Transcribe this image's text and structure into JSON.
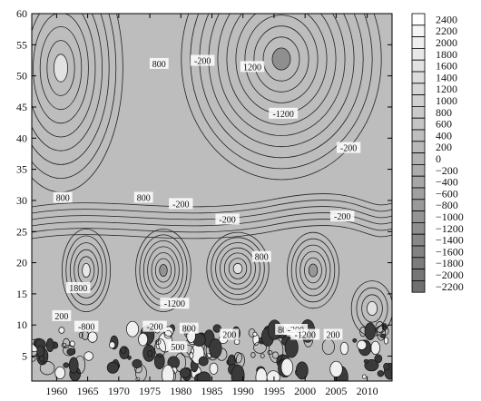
{
  "chart_data": {
    "type": "heatmap",
    "title": "",
    "xlabel": "",
    "ylabel": "",
    "x_ticks": [
      "1960",
      "1965",
      "1970",
      "1975",
      "1980",
      "1985",
      "1990",
      "1995",
      "2000",
      "2005",
      "2010"
    ],
    "y_ticks": [
      "5",
      "10",
      "15",
      "20",
      "25",
      "30",
      "35",
      "40",
      "45",
      "50",
      "55",
      "60"
    ],
    "xlim": [
      1956,
      2014
    ],
    "ylim": [
      1,
      60
    ],
    "colorbar_levels": [
      "2400",
      "2200",
      "2000",
      "1800",
      "1600",
      "1400",
      "1200",
      "1000",
      "800",
      "600",
      "400",
      "200",
      "0",
      "−200",
      "−400",
      "−600",
      "−800",
      "−1000",
      "−1200",
      "−1400",
      "−1600",
      "−1800",
      "−2000",
      "−2200"
    ],
    "colorbar_colors": [
      "#ffffff",
      "#f6f6f6",
      "#efefef",
      "#e8e8e8",
      "#e2e2e2",
      "#dcdcdc",
      "#d6d6d6",
      "#d0d0d0",
      "#cacaca",
      "#c4c4c4",
      "#bebebe",
      "#b8b8b8",
      "#b2b2b2",
      "#acacac",
      "#a6a6a6",
      "#a0a0a0",
      "#9a9a9a",
      "#949494",
      "#8e8e8e",
      "#888888",
      "#828282",
      "#7c7c7c",
      "#767676",
      "#707070"
    ],
    "contour_labels": [
      {
        "text": "800",
        "x": 1976.5,
        "y": 52
      },
      {
        "text": "-200",
        "x": 1983.5,
        "y": 52.5
      },
      {
        "text": "1200",
        "x": 1991.5,
        "y": 51.5
      },
      {
        "text": "-1200",
        "x": 1996.5,
        "y": 44
      },
      {
        "text": "-200",
        "x": 2007,
        "y": 38.5
      },
      {
        "text": "800",
        "x": 1961,
        "y": 30.5
      },
      {
        "text": "800",
        "x": 1974,
        "y": 30.5
      },
      {
        "text": "-200",
        "x": 1980,
        "y": 29.5
      },
      {
        "text": "-200",
        "x": 1987.5,
        "y": 27
      },
      {
        "text": "-200",
        "x": 2006,
        "y": 27.5
      },
      {
        "text": "800",
        "x": 1993,
        "y": 21
      },
      {
        "text": "1800",
        "x": 1963.5,
        "y": 16
      },
      {
        "text": "-1200",
        "x": 1979,
        "y": 13.5
      },
      {
        "text": "200",
        "x": 1960.8,
        "y": 11.5
      },
      {
        "text": "-800",
        "x": 1964.8,
        "y": 9.8
      },
      {
        "text": "-200",
        "x": 1975.8,
        "y": 9.8
      },
      {
        "text": "800",
        "x": 1981.3,
        "y": 9.5
      },
      {
        "text": "500",
        "x": 1979.5,
        "y": 6.5
      },
      {
        "text": "200",
        "x": 1987.8,
        "y": 8.5
      },
      {
        "text": "800",
        "x": 1996.7,
        "y": 9.3
      },
      {
        "text": "-200",
        "x": 1998.5,
        "y": 9.3
      },
      {
        "text": "-1200",
        "x": 2000,
        "y": 8.5
      },
      {
        "text": "200",
        "x": 2004.5,
        "y": 8.5
      }
    ]
  }
}
